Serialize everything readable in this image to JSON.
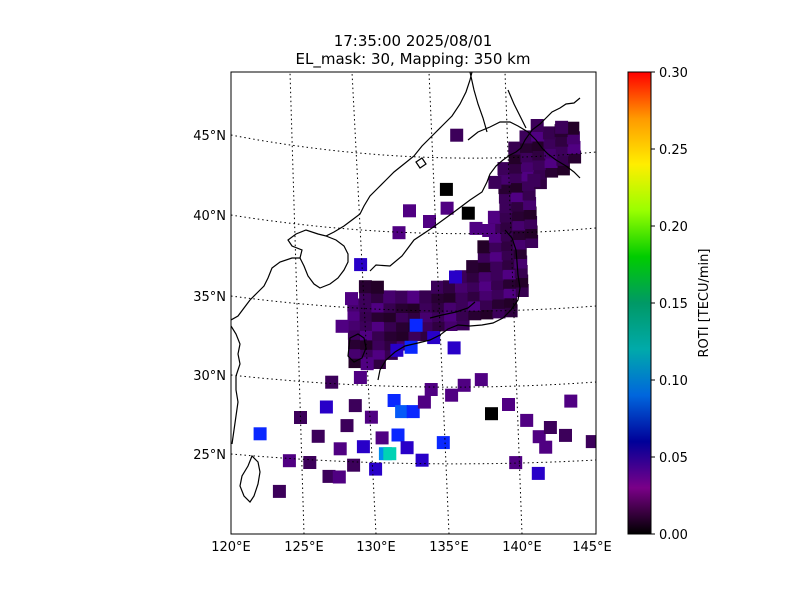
{
  "title_line1": "17:35:00 2025/08/01",
  "title_line2": "EL_mask: 30, Mapping: 350 km",
  "colorbar": {
    "label": "ROTI [TECU/min]",
    "ticks": [
      "0.00",
      "0.05",
      "0.10",
      "0.15",
      "0.20",
      "0.25",
      "0.30"
    ]
  },
  "chart_data": {
    "type": "heatmap",
    "map_extent": {
      "lon": [
        120,
        145
      ],
      "lat": [
        20,
        49
      ]
    },
    "lon_tick_labels": [
      "120°E",
      "125°E",
      "130°E",
      "135°E",
      "140°E",
      "145°E"
    ],
    "lat_tick_labels": [
      "25°N",
      "30°N",
      "35°N",
      "40°N",
      "45°N"
    ],
    "value_range": [
      0.0,
      0.3
    ],
    "colormap": "nipy_spectral",
    "typical_value": 0.03,
    "cells": [
      [
        122.0,
        26.5,
        0.06
      ],
      [
        123.3,
        23.0,
        0.03
      ],
      [
        124.0,
        25.0,
        0.04
      ],
      [
        124.8,
        27.8,
        0.03
      ],
      [
        125.4,
        25.0,
        0.03
      ],
      [
        126.0,
        26.7,
        0.03
      ],
      [
        126.6,
        28.6,
        0.05
      ],
      [
        126.7,
        24.2,
        0.03
      ],
      [
        127.4,
        24.2,
        0.04
      ],
      [
        127.5,
        26.0,
        0.04
      ],
      [
        127.0,
        30.2,
        0.03
      ],
      [
        128.0,
        27.5,
        0.03
      ],
      [
        128.4,
        25.0,
        0.03
      ],
      [
        128.6,
        28.8,
        0.03
      ],
      [
        129.1,
        26.2,
        0.05
      ],
      [
        129.0,
        30.6,
        0.04
      ],
      [
        129.5,
        31.5,
        0.04
      ],
      [
        129.7,
        28.1,
        0.04
      ],
      [
        129.9,
        24.8,
        0.05
      ],
      [
        130.4,
        26.8,
        0.04
      ],
      [
        130.6,
        25.8,
        0.08
      ],
      [
        130.9,
        25.8,
        0.11
      ],
      [
        131.3,
        29.2,
        0.06
      ],
      [
        131.8,
        28.5,
        0.07
      ],
      [
        131.5,
        27.0,
        0.06
      ],
      [
        132.1,
        26.2,
        0.05
      ],
      [
        132.6,
        28.5,
        0.06
      ],
      [
        133.1,
        25.4,
        0.05
      ],
      [
        133.4,
        29.1,
        0.04
      ],
      [
        133.9,
        29.9,
        0.04
      ],
      [
        134.6,
        26.5,
        0.06
      ],
      [
        135.3,
        29.5,
        0.04
      ],
      [
        136.2,
        30.1,
        0.04
      ],
      [
        137.4,
        30.4,
        0.04
      ],
      [
        138.0,
        28.2,
        0.0
      ],
      [
        139.2,
        28.7,
        0.04
      ],
      [
        139.5,
        25.0,
        0.04
      ],
      [
        140.4,
        27.6,
        0.04
      ],
      [
        141.0,
        24.2,
        0.05
      ],
      [
        141.2,
        26.5,
        0.04
      ],
      [
        141.6,
        25.8,
        0.04
      ],
      [
        142.0,
        27.0,
        0.03
      ],
      [
        143.5,
        28.5,
        0.04
      ],
      [
        143.0,
        26.4,
        0.03
      ],
      [
        144.8,
        25.8,
        0.03
      ],
      [
        128.5,
        35.6,
        0.04
      ],
      [
        127.8,
        33.8,
        0.04
      ],
      [
        129.2,
        37.8,
        0.05
      ],
      [
        132.0,
        39.9,
        0.04
      ],
      [
        132.8,
        41.3,
        0.04
      ],
      [
        134.2,
        40.6,
        0.04
      ],
      [
        135.5,
        41.4,
        0.04
      ],
      [
        135.5,
        42.6,
        0.0
      ],
      [
        136.4,
        46.0,
        0.03
      ],
      [
        138.4,
        39.8,
        0.04
      ],
      [
        137.0,
        41.0,
        0.0
      ],
      [
        141.8,
        42.6,
        0.03
      ],
      [
        144.0,
        45.6,
        0.03
      ]
    ],
    "land_mask": {
      "type": "polygon",
      "lonlat": [
        [
          128.5,
          31.6
        ],
        [
          130.4,
          31.2
        ],
        [
          132.0,
          32.6
        ],
        [
          134.2,
          33.5
        ],
        [
          135.9,
          33.6
        ],
        [
          137.1,
          34.2
        ],
        [
          138.6,
          34.6
        ],
        [
          140.0,
          34.6
        ],
        [
          140.3,
          35.2
        ],
        [
          140.9,
          36.2
        ],
        [
          141.4,
          38.6
        ],
        [
          141.8,
          40.4
        ],
        [
          142.0,
          42.0
        ],
        [
          142.8,
          42.4
        ],
        [
          144.4,
          42.9
        ],
        [
          145.5,
          43.3
        ],
        [
          145.5,
          45.6
        ],
        [
          143.4,
          45.9
        ],
        [
          142.2,
          46.1
        ],
        [
          139.8,
          44.8
        ],
        [
          139.6,
          42.6
        ],
        [
          138.7,
          40.9
        ],
        [
          137.9,
          38.7
        ],
        [
          136.8,
          37.6
        ],
        [
          135.5,
          36.6
        ],
        [
          133.3,
          36.2
        ],
        [
          131.0,
          36.4
        ],
        [
          129.0,
          36.5
        ],
        [
          128.3,
          34.6
        ],
        [
          128.2,
          33.1
        ]
      ],
      "grid_step": [
        0.85,
        0.6
      ],
      "value_cycle": [
        0.02,
        0.03,
        0.025,
        0.035,
        0.03,
        0.04,
        0.028,
        0.022
      ],
      "accent_cells": [
        [
          133.0,
          34.0,
          0.06
        ],
        [
          134.2,
          33.2,
          0.05
        ],
        [
          135.6,
          32.5,
          0.05
        ],
        [
          135.9,
          37.0,
          0.05
        ],
        [
          137.5,
          40.0,
          0.04
        ],
        [
          132.6,
          32.6,
          0.06
        ],
        [
          131.6,
          32.4,
          0.05
        ],
        [
          139.0,
          42.8,
          0.03
        ]
      ]
    }
  }
}
